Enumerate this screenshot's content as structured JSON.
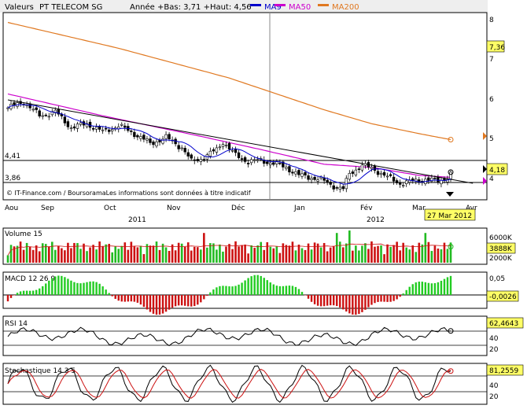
{
  "header": {
    "valeurs": "Valeurs",
    "title": "PT TELECOM SG",
    "range_info": "Année +Bas: 3,71 +Haut: 4,56",
    "legend": [
      {
        "name": "MA9",
        "color": "#0000cc"
      },
      {
        "name": "MA50",
        "color": "#cc00cc"
      },
      {
        "name": "MA200",
        "color": "#e07820"
      }
    ]
  },
  "footer_note": "© IT-Finance.com / BoursoramaLes informations sont données à titre indicatif",
  "price_panel": {
    "y_ticks": [
      "8",
      "7",
      "6",
      "5",
      "4"
    ],
    "left_levels": [
      {
        "label": "4,41",
        "value": 4.41
      },
      {
        "label": "3,86",
        "value": 3.86
      }
    ],
    "badges": [
      {
        "label": "7,36",
        "color": "#ffff66"
      },
      {
        "label": "4,18",
        "color": "#ffff66"
      }
    ],
    "month_labels": [
      "Aou",
      "Sep",
      "Oct",
      "Nov",
      "Déc",
      "Jan",
      "Fév",
      "Mar",
      "Avr"
    ],
    "year_labels": [
      "2011",
      "2012"
    ],
    "date_badge": "27 Mar 2012"
  },
  "volume_panel": {
    "title": "Volume 15",
    "y_ticks": [
      "6000K",
      "2000K"
    ],
    "badge": "3888K"
  },
  "macd_panel": {
    "title": "MACD 12 26 9",
    "y_ticks": [
      "0,05"
    ],
    "badge": "-0,0026"
  },
  "rsi_panel": {
    "title": "RSI 14",
    "y_ticks": [
      "40",
      "20"
    ],
    "badge": "62,4643"
  },
  "stoch_panel": {
    "title": "Stochastique 14 3 5",
    "y_ticks": [
      "40",
      "20"
    ],
    "badge": "81,2559"
  },
  "chart_data": {
    "type": "candlestick",
    "title": "PT TELECOM SG",
    "period": "Aou 2011 – Mar 2012",
    "price_ylim": [
      3.5,
      8.4
    ],
    "price_anchors": [
      [
        0,
        5.8
      ],
      [
        5,
        5.95
      ],
      [
        10,
        5.6
      ],
      [
        15,
        5.7
      ],
      [
        20,
        5.3
      ],
      [
        25,
        5.4
      ],
      [
        30,
        5.2
      ],
      [
        35,
        5.35
      ],
      [
        40,
        5.15
      ],
      [
        45,
        4.9
      ],
      [
        50,
        5.05
      ],
      [
        55,
        4.8
      ],
      [
        58,
        4.45
      ],
      [
        62,
        4.55
      ],
      [
        66,
        4.75
      ],
      [
        68,
        4.95
      ],
      [
        72,
        4.6
      ],
      [
        76,
        4.45
      ],
      [
        80,
        4.48
      ],
      [
        84,
        4.4
      ],
      [
        88,
        4.3
      ],
      [
        92,
        4.1
      ],
      [
        96,
        4.05
      ],
      [
        100,
        3.95
      ],
      [
        104,
        3.8
      ],
      [
        106,
        3.75
      ],
      [
        108,
        4.15
      ],
      [
        112,
        4.35
      ],
      [
        116,
        4.25
      ],
      [
        120,
        4.05
      ],
      [
        124,
        3.9
      ],
      [
        128,
        3.95
      ],
      [
        132,
        4.0
      ],
      [
        136,
        3.95
      ],
      [
        139,
        4.05
      ],
      [
        140,
        4.18
      ]
    ],
    "ma200_anchors": [
      [
        0,
        7.95
      ],
      [
        35,
        7.3
      ],
      [
        70,
        6.55
      ],
      [
        100,
        5.75
      ],
      [
        115,
        5.4
      ],
      [
        130,
        5.15
      ],
      [
        140,
        5.0
      ]
    ],
    "ma50_anchors": [
      [
        0,
        6.15
      ],
      [
        30,
        5.6
      ],
      [
        60,
        5.1
      ],
      [
        80,
        4.75
      ],
      [
        100,
        4.38
      ],
      [
        115,
        4.3
      ],
      [
        130,
        4.1
      ],
      [
        140,
        4.05
      ]
    ],
    "ma9_lag": 4,
    "trendline": [
      [
        0,
        6.0
      ],
      [
        147,
        3.9
      ]
    ],
    "last_close": 4.18,
    "volume_last": "3888K",
    "macd_last": -0.0026,
    "rsi_last": 62.4643,
    "stoch_last": 81.2559,
    "volume_ylim": [
      0,
      8000
    ],
    "rsi_ylim": [
      0,
      100
    ],
    "stoch_ylim": [
      0,
      100
    ]
  }
}
